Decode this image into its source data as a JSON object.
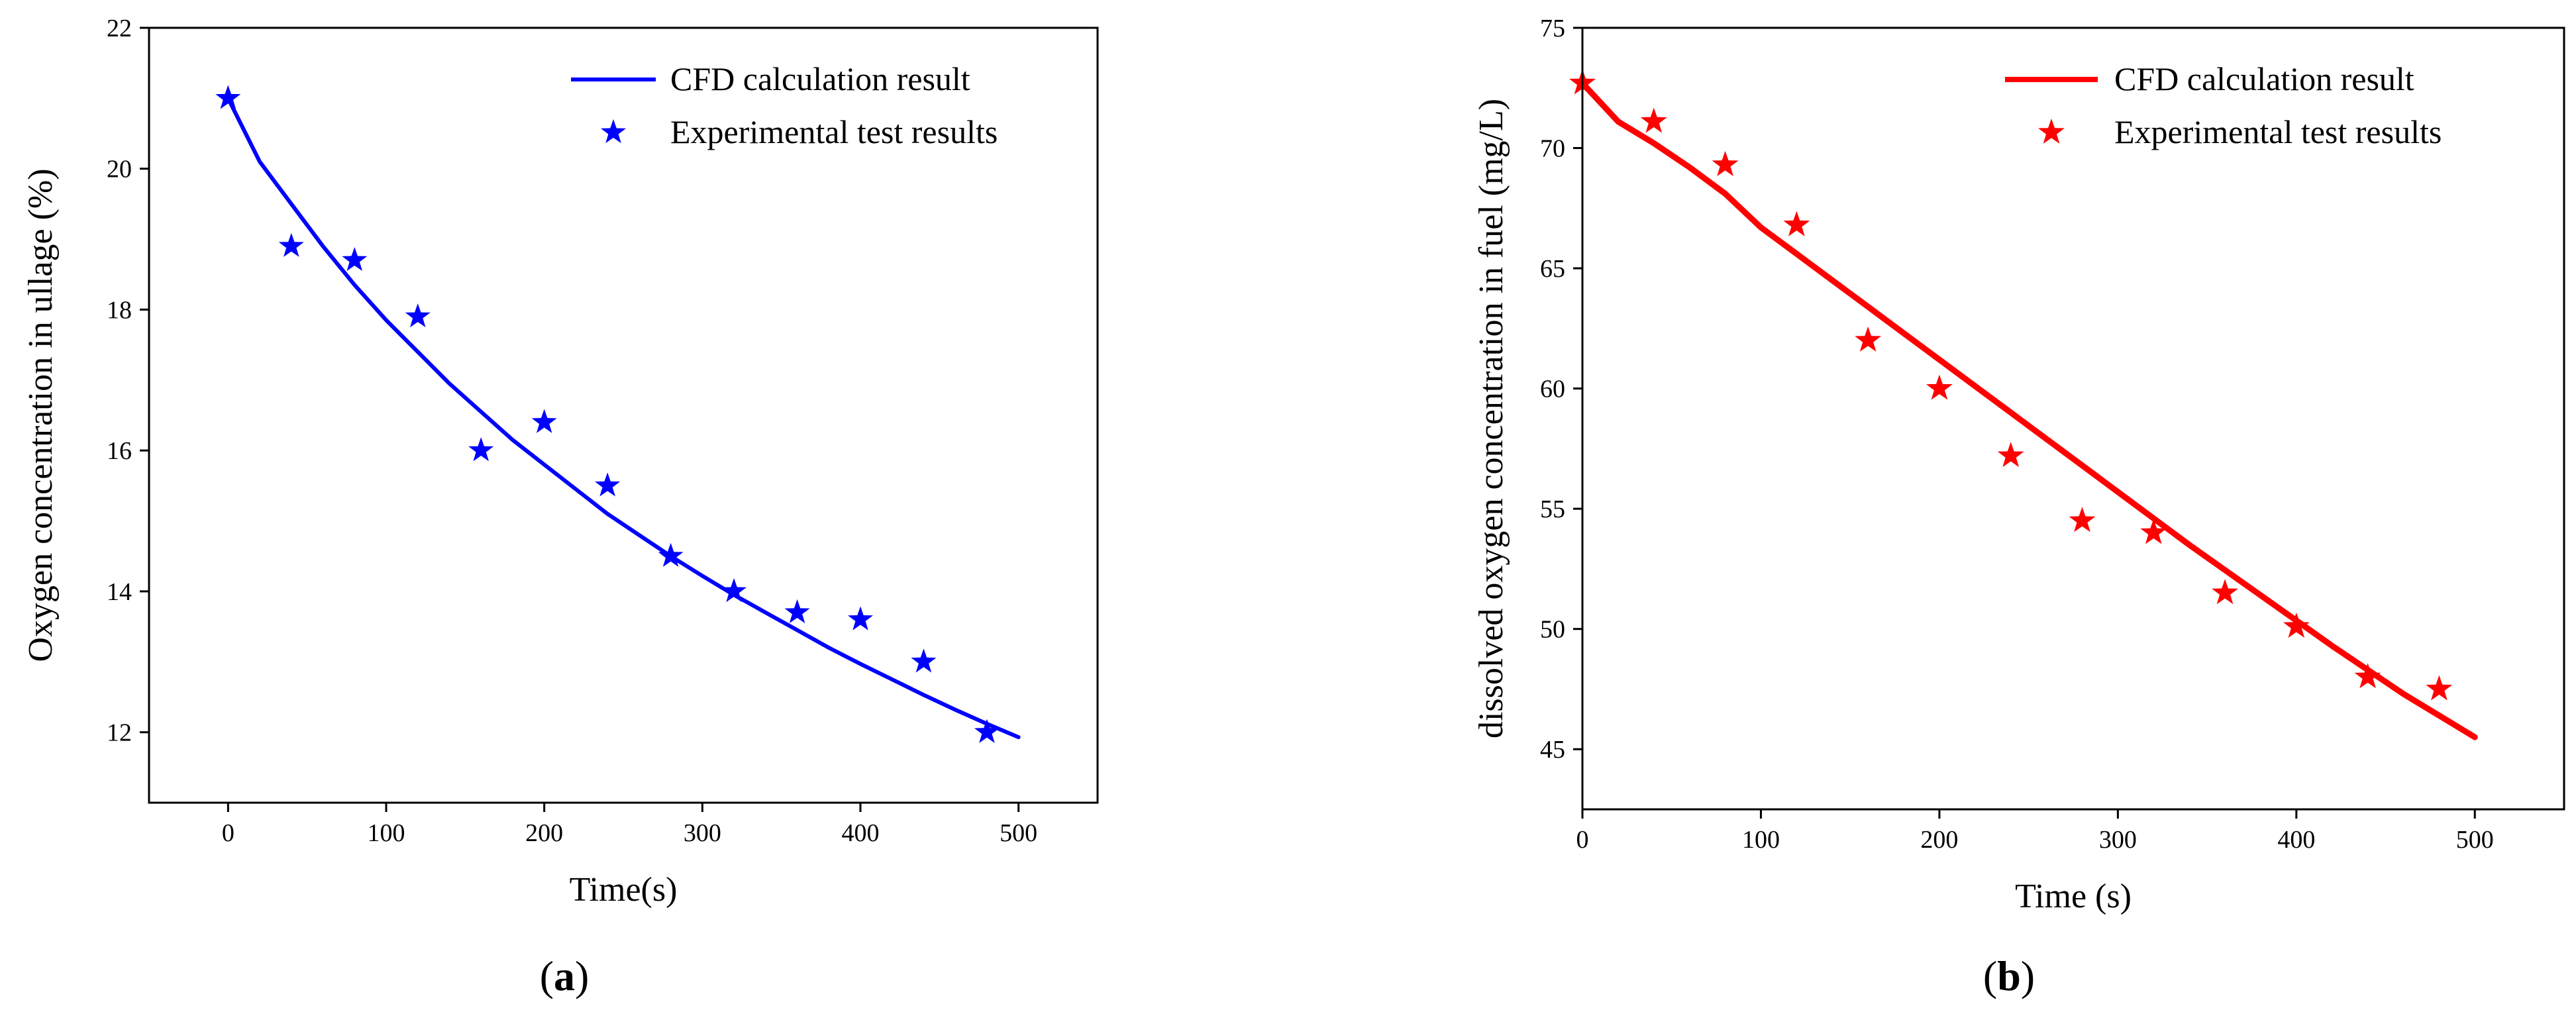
{
  "chart_data": [
    {
      "type": "line+scatter",
      "caption_letter": "a",
      "caption_open": "(",
      "caption_close": ")",
      "title": "",
      "xlabel": "Time(s)",
      "ylabel": "Oxygen concentration in ullage (%)",
      "xlim": [
        -50,
        550
      ],
      "ylim": [
        11,
        22
      ],
      "xticks": [
        0,
        100,
        200,
        300,
        400,
        500
      ],
      "yticks": [
        12,
        14,
        16,
        18,
        20,
        22
      ],
      "color": "#0000ff",
      "legend_position": "top-right",
      "series": [
        {
          "name": "CFD calculation result",
          "kind": "line",
          "x": [
            0,
            20,
            40,
            60,
            80,
            100,
            120,
            140,
            160,
            180,
            200,
            220,
            240,
            260,
            280,
            300,
            320,
            340,
            360,
            380,
            400,
            420,
            440,
            460,
            480,
            500
          ],
          "y": [
            21.0,
            20.1,
            19.5,
            18.9,
            18.35,
            17.85,
            17.4,
            16.95,
            16.55,
            16.15,
            15.8,
            15.45,
            15.1,
            14.8,
            14.5,
            14.22,
            13.95,
            13.7,
            13.45,
            13.2,
            12.97,
            12.75,
            12.53,
            12.32,
            12.12,
            11.93
          ]
        },
        {
          "name": "Experimental test results",
          "kind": "scatter",
          "marker": "star",
          "x": [
            0,
            40,
            80,
            120,
            160,
            200,
            240,
            280,
            320,
            360,
            400,
            440,
            480
          ],
          "y": [
            21.0,
            18.9,
            18.7,
            17.9,
            16.0,
            16.4,
            15.5,
            14.5,
            14.0,
            13.7,
            13.6,
            13.0,
            12.0
          ]
        }
      ]
    },
    {
      "type": "line+scatter",
      "caption_letter": "b",
      "caption_open": "(",
      "caption_close": ")",
      "title": "",
      "xlabel": "Time (s)",
      "ylabel": "dissolved oxygen concentration in fuel (mg/L)",
      "xlim": [
        0,
        550
      ],
      "ylim": [
        42.5,
        75
      ],
      "xticks": [
        0,
        100,
        200,
        300,
        400,
        500
      ],
      "yticks": [
        45,
        50,
        55,
        60,
        65,
        70,
        75
      ],
      "color": "#ff0000",
      "legend_position": "top-right",
      "series": [
        {
          "name": "CFD calculation result",
          "kind": "line",
          "x": [
            0,
            20,
            40,
            60,
            80,
            100,
            120,
            140,
            160,
            180,
            200,
            220,
            240,
            260,
            280,
            300,
            320,
            340,
            360,
            380,
            400,
            420,
            440,
            460,
            480,
            500
          ],
          "y": [
            72.7,
            71.1,
            70.2,
            69.2,
            68.1,
            66.7,
            65.6,
            64.5,
            63.4,
            62.3,
            61.2,
            60.1,
            59.0,
            57.9,
            56.8,
            55.7,
            54.6,
            53.5,
            52.45,
            51.4,
            50.35,
            49.3,
            48.3,
            47.3,
            46.4,
            45.5
          ]
        },
        {
          "name": "Experimental test results",
          "kind": "scatter",
          "marker": "star",
          "x": [
            0,
            40,
            80,
            120,
            160,
            200,
            240,
            280,
            320,
            360,
            400,
            440,
            480
          ],
          "y": [
            72.7,
            71.1,
            69.3,
            66.8,
            62.0,
            60.0,
            57.2,
            54.5,
            54.0,
            51.5,
            50.1,
            48.0,
            47.5
          ]
        }
      ]
    }
  ]
}
